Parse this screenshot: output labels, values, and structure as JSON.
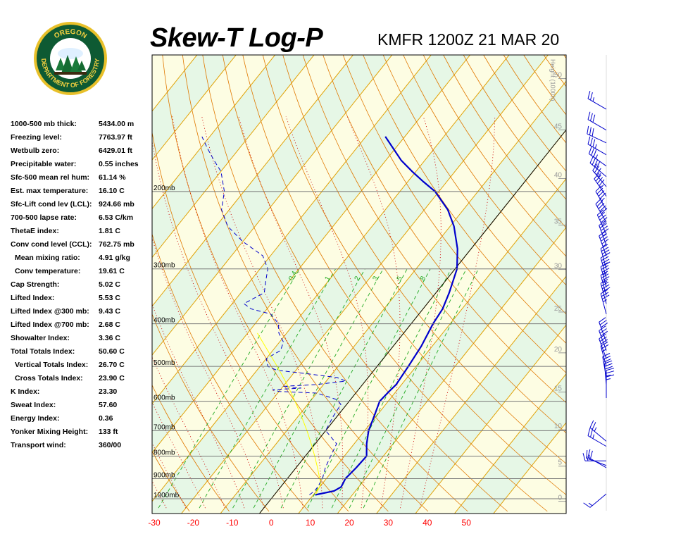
{
  "header": {
    "title": "Skew-T Log-P",
    "station_time": "KMFR 1200Z 21 MAR 20",
    "logo_text": [
      "OREGON",
      "DEPARTMENT OF FORESTRY"
    ]
  },
  "indices": [
    {
      "label": "1000-500 mb thick:",
      "value": "5434.00 m"
    },
    {
      "label": "Freezing level:",
      "value": "7763.97 ft"
    },
    {
      "label": "Wetbulb zero:",
      "value": "6429.01 ft"
    },
    {
      "label": "Precipitable water:",
      "value": "0.55 inches"
    },
    {
      "label": "Sfc-500 mean rel hum:",
      "value": "61.14 %"
    },
    {
      "label": "Est. max temperature:",
      "value": "16.10 C"
    },
    {
      "label": "Sfc-Lift cond lev (LCL):",
      "value": "924.66 mb"
    },
    {
      "label": "700-500 lapse rate:",
      "value": "6.53 C/km"
    },
    {
      "label": "ThetaE index:",
      "value": "1.81 C"
    },
    {
      "label": "Conv cond level (CCL):",
      "value": "762.75 mb"
    },
    {
      "label": "Mean mixing ratio:",
      "value": "4.91 g/kg",
      "indent": true
    },
    {
      "label": "Conv temperature:",
      "value": "19.61 C",
      "indent": true
    },
    {
      "label": "Cap Strength:",
      "value": "5.02 C"
    },
    {
      "label": "Lifted Index:",
      "value": "5.53 C"
    },
    {
      "label": "Lifted Index @300 mb:",
      "value": "9.43 C"
    },
    {
      "label": "Lifted Index @700 mb:",
      "value": "2.68 C"
    },
    {
      "label": "Showalter Index:",
      "value": "3.36 C"
    },
    {
      "label": "Total Totals Index:",
      "value": "50.60 C"
    },
    {
      "label": "Vertical Totals Index:",
      "value": "26.70 C",
      "indent": true
    },
    {
      "label": "Cross Totals Index:",
      "value": "23.90 C",
      "indent": true
    },
    {
      "label": "K Index:",
      "value": "23.30"
    },
    {
      "label": "Sweat Index:",
      "value": "57.60"
    },
    {
      "label": "Energy Index:",
      "value": "0.36"
    },
    {
      "label": "Yonker Mixing Height:",
      "value": "133 ft"
    },
    {
      "label": "Transport wind:",
      "value": "360/00"
    }
  ],
  "chart_data": {
    "type": "line",
    "title": "Skew-T Log-P",
    "subtitle": "KMFR 1200Z 21 MAR 20",
    "x_ticks": [
      "-30",
      "-20",
      "-10",
      "0",
      "10",
      "20",
      "30",
      "40",
      "50"
    ],
    "pressure_labels": [
      {
        "p": 200,
        "label": "200mb"
      },
      {
        "p": 300,
        "label": "300mb"
      },
      {
        "p": 400,
        "label": "400mb"
      },
      {
        "p": 500,
        "label": "500mb"
      },
      {
        "p": 600,
        "label": "600mb"
      },
      {
        "p": 700,
        "label": "700mb"
      },
      {
        "p": 800,
        "label": "800mb"
      },
      {
        "p": 900,
        "label": "900mb"
      },
      {
        "p": 1000,
        "label": "1000mb"
      }
    ],
    "height_axis_label": "Height (1000ft)",
    "height_ticks": [
      {
        "ft": 0,
        "label": "0"
      },
      {
        "ft": 5,
        "label": "5"
      },
      {
        "ft": 10,
        "label": "10"
      },
      {
        "ft": 15,
        "label": "15"
      },
      {
        "ft": 20,
        "label": "20"
      },
      {
        "ft": 25,
        "label": "25"
      },
      {
        "ft": 30,
        "label": "30"
      },
      {
        "ft": 35,
        "label": "35"
      },
      {
        "ft": 40,
        "label": "40"
      },
      {
        "ft": 45,
        "label": "45"
      },
      {
        "ft": 50,
        "label": "50"
      }
    ],
    "mixing_ratio_labels": [
      "0.4",
      "1",
      "2",
      "3",
      "5",
      "8"
    ],
    "series": [
      {
        "role": "temperature",
        "points": [
          [
            980,
            10.5
          ],
          [
            960,
            14.5
          ],
          [
            940,
            15.5
          ],
          [
            900,
            14.9
          ],
          [
            850,
            15.4
          ],
          [
            800,
            15.7
          ],
          [
            750,
            13.2
          ],
          [
            700,
            11.0
          ],
          [
            650,
            9.5
          ],
          [
            600,
            7.8
          ],
          [
            570,
            8.2
          ],
          [
            550,
            8.6
          ],
          [
            500,
            8.0
          ],
          [
            450,
            7.2
          ],
          [
            400,
            5.6
          ],
          [
            370,
            5.0
          ],
          [
            340,
            3.4
          ],
          [
            300,
            0.5
          ],
          [
            270,
            -3.5
          ],
          [
            240,
            -9.0
          ],
          [
            220,
            -14.0
          ],
          [
            200,
            -21.0
          ],
          [
            190,
            -26.0
          ],
          [
            180,
            -31.0
          ],
          [
            170,
            -36.0
          ],
          [
            150,
            -45.0
          ]
        ]
      },
      {
        "role": "dewpoint",
        "points": [
          [
            980,
            9.0
          ],
          [
            960,
            9.5
          ],
          [
            940,
            9.5
          ],
          [
            900,
            9.0
          ],
          [
            850,
            7.5
          ],
          [
            800,
            6.5
          ],
          [
            750,
            5.5
          ],
          [
            700,
            0.0
          ],
          [
            650,
            -1.0
          ],
          [
            610,
            -1.5
          ],
          [
            595,
            -3.5
          ],
          [
            575,
            -10.0
          ],
          [
            570,
            -20.0
          ],
          [
            565,
            -22.0
          ],
          [
            560,
            -15.0
          ],
          [
            555,
            -20.0
          ],
          [
            550,
            -12.0
          ],
          [
            540,
            -5.0
          ],
          [
            530,
            -8.0
          ],
          [
            520,
            -16.0
          ],
          [
            510,
            -25.0
          ],
          [
            500,
            -28.0
          ],
          [
            480,
            -30.0
          ],
          [
            460,
            -28.0
          ],
          [
            440,
            -29.0
          ],
          [
            420,
            -32.0
          ],
          [
            400,
            -34.0
          ],
          [
            380,
            -38.0
          ],
          [
            370,
            -44.0
          ],
          [
            360,
            -47.0
          ],
          [
            340,
            -44.0
          ],
          [
            320,
            -46.0
          ],
          [
            300,
            -48.0
          ],
          [
            280,
            -52.0
          ],
          [
            260,
            -60.0
          ],
          [
            240,
            -67.0
          ],
          [
            220,
            -72.0
          ],
          [
            200,
            -75.0
          ],
          [
            180,
            -80.0
          ],
          [
            170,
            -84.0
          ],
          [
            160,
            -88.0
          ],
          [
            150,
            -92.0
          ]
        ]
      },
      {
        "role": "parcel",
        "points": [
          [
            975,
            10.5
          ],
          [
            925,
            9.7
          ],
          [
            900,
            8.3
          ],
          [
            850,
            5.5
          ],
          [
            800,
            2.4
          ],
          [
            750,
            -1.0
          ],
          [
            700,
            -4.8
          ],
          [
            650,
            -9.1
          ],
          [
            600,
            -13.9
          ],
          [
            550,
            -19.3
          ],
          [
            500,
            -25.6
          ],
          [
            450,
            -32.8
          ],
          [
            420,
            -37.5
          ]
        ]
      }
    ],
    "wind_barbs": [
      {
        "p": 975,
        "dir": 230,
        "speed": 15
      },
      {
        "p": 850,
        "dir": 300,
        "speed": 20
      },
      {
        "p": 840,
        "dir": 290,
        "speed": 15
      },
      {
        "p": 820,
        "dir": 270,
        "speed": 15
      },
      {
        "p": 760,
        "dir": 300,
        "speed": 25
      },
      {
        "p": 740,
        "dir": 310,
        "speed": 25
      },
      {
        "p": 590,
        "dir": 360,
        "speed": 15
      },
      {
        "p": 570,
        "dir": 360,
        "speed": 25
      },
      {
        "p": 550,
        "dir": 355,
        "speed": 30
      },
      {
        "p": 530,
        "dir": 350,
        "speed": 30
      },
      {
        "p": 500,
        "dir": 345,
        "speed": 25
      },
      {
        "p": 480,
        "dir": 340,
        "speed": 30
      },
      {
        "p": 460,
        "dir": 340,
        "speed": 30
      },
      {
        "p": 440,
        "dir": 340,
        "speed": 30
      },
      {
        "p": 380,
        "dir": 345,
        "speed": 35
      },
      {
        "p": 360,
        "dir": 345,
        "speed": 40
      },
      {
        "p": 345,
        "dir": 345,
        "speed": 35
      },
      {
        "p": 330,
        "dir": 345,
        "speed": 35
      },
      {
        "p": 315,
        "dir": 345,
        "speed": 40
      },
      {
        "p": 300,
        "dir": 345,
        "speed": 40
      },
      {
        "p": 280,
        "dir": 340,
        "speed": 45
      },
      {
        "p": 265,
        "dir": 340,
        "speed": 45
      },
      {
        "p": 250,
        "dir": 335,
        "speed": 45
      },
      {
        "p": 235,
        "dir": 330,
        "speed": 50
      },
      {
        "p": 220,
        "dir": 330,
        "speed": 45
      },
      {
        "p": 205,
        "dir": 325,
        "speed": 45
      },
      {
        "p": 195,
        "dir": 320,
        "speed": 35
      },
      {
        "p": 185,
        "dir": 310,
        "speed": 40
      },
      {
        "p": 175,
        "dir": 305,
        "speed": 35
      },
      {
        "p": 165,
        "dir": 300,
        "speed": 35
      },
      {
        "p": 155,
        "dir": 295,
        "speed": 30
      },
      {
        "p": 145,
        "dir": 300,
        "speed": 30
      },
      {
        "p": 130,
        "dir": 300,
        "speed": 25
      }
    ],
    "colors": {
      "temperature": "#0000cc",
      "dewpoint": "#0000cc",
      "parcel": "#ffff00",
      "isotherm": "#e0a000",
      "dry_adiabat": "#e07800",
      "moist_adiabat": "#cc0000",
      "mixing_ratio": "#22aa22",
      "pressure_line": "#777777",
      "band_yellow": "#fdfde3",
      "band_green": "#e6f7e6",
      "x_tick": "#ff0000",
      "wind_barb": "#0000cc",
      "freezing_line": "#000000"
    }
  }
}
